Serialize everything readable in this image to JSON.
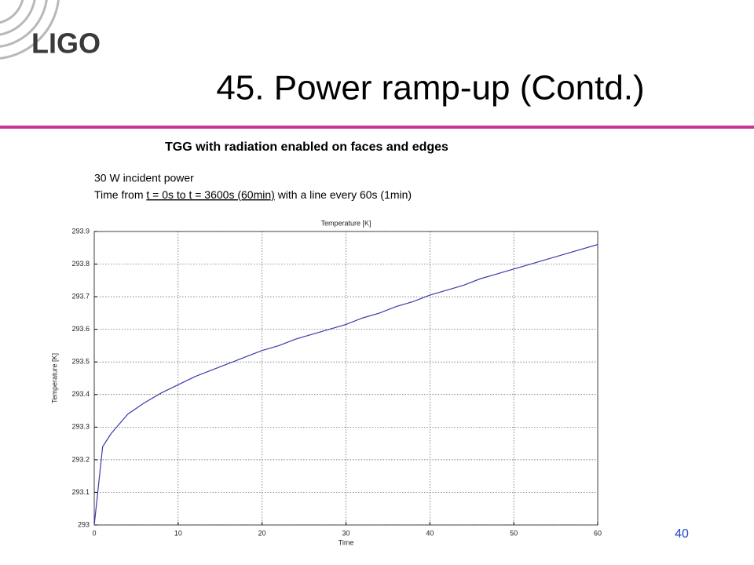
{
  "slide": {
    "logo": "LIGO",
    "title": "45. Power ramp-up (Contd.)",
    "heading": "TGG with radiation enabled on faces and edges",
    "line1": "30 W incident power",
    "line2": [
      "Time from",
      "t = 0s to t = 3600s (60min)",
      "with a line every 60s (1min)"
    ],
    "page_number": "40"
  },
  "chart_data": {
    "type": "line",
    "title": "Temperature [K]",
    "x_label": "Time",
    "y_label": "Temperature [K]",
    "x": [
      0,
      1,
      2,
      4,
      6,
      8,
      10,
      12,
      14,
      16,
      18,
      20,
      22,
      24,
      26,
      28,
      30,
      32,
      34,
      36,
      38,
      40,
      42,
      44,
      46,
      48,
      50,
      52,
      54,
      56,
      58,
      60
    ],
    "series": [
      {
        "name": "Temperature [K]",
        "color": "#3b3bab",
        "values": [
          293.0,
          293.24,
          293.28,
          293.34,
          293.375,
          293.405,
          293.43,
          293.455,
          293.475,
          293.495,
          293.515,
          293.535,
          293.55,
          293.57,
          293.585,
          293.6,
          293.615,
          293.635,
          293.65,
          293.67,
          293.685,
          293.705,
          293.72,
          293.735,
          293.755,
          293.77,
          293.785,
          293.8,
          293.815,
          293.83,
          293.845,
          293.86
        ]
      }
    ],
    "xlim": [
      0,
      60
    ],
    "xticks": [
      0,
      10,
      20,
      30,
      40,
      50,
      60
    ],
    "ylim": [
      293,
      293.9
    ],
    "yticks": [
      293,
      293.1,
      293.2,
      293.3,
      293.4,
      293.5,
      293.6,
      293.7,
      293.8,
      293.9
    ],
    "grid": true
  }
}
